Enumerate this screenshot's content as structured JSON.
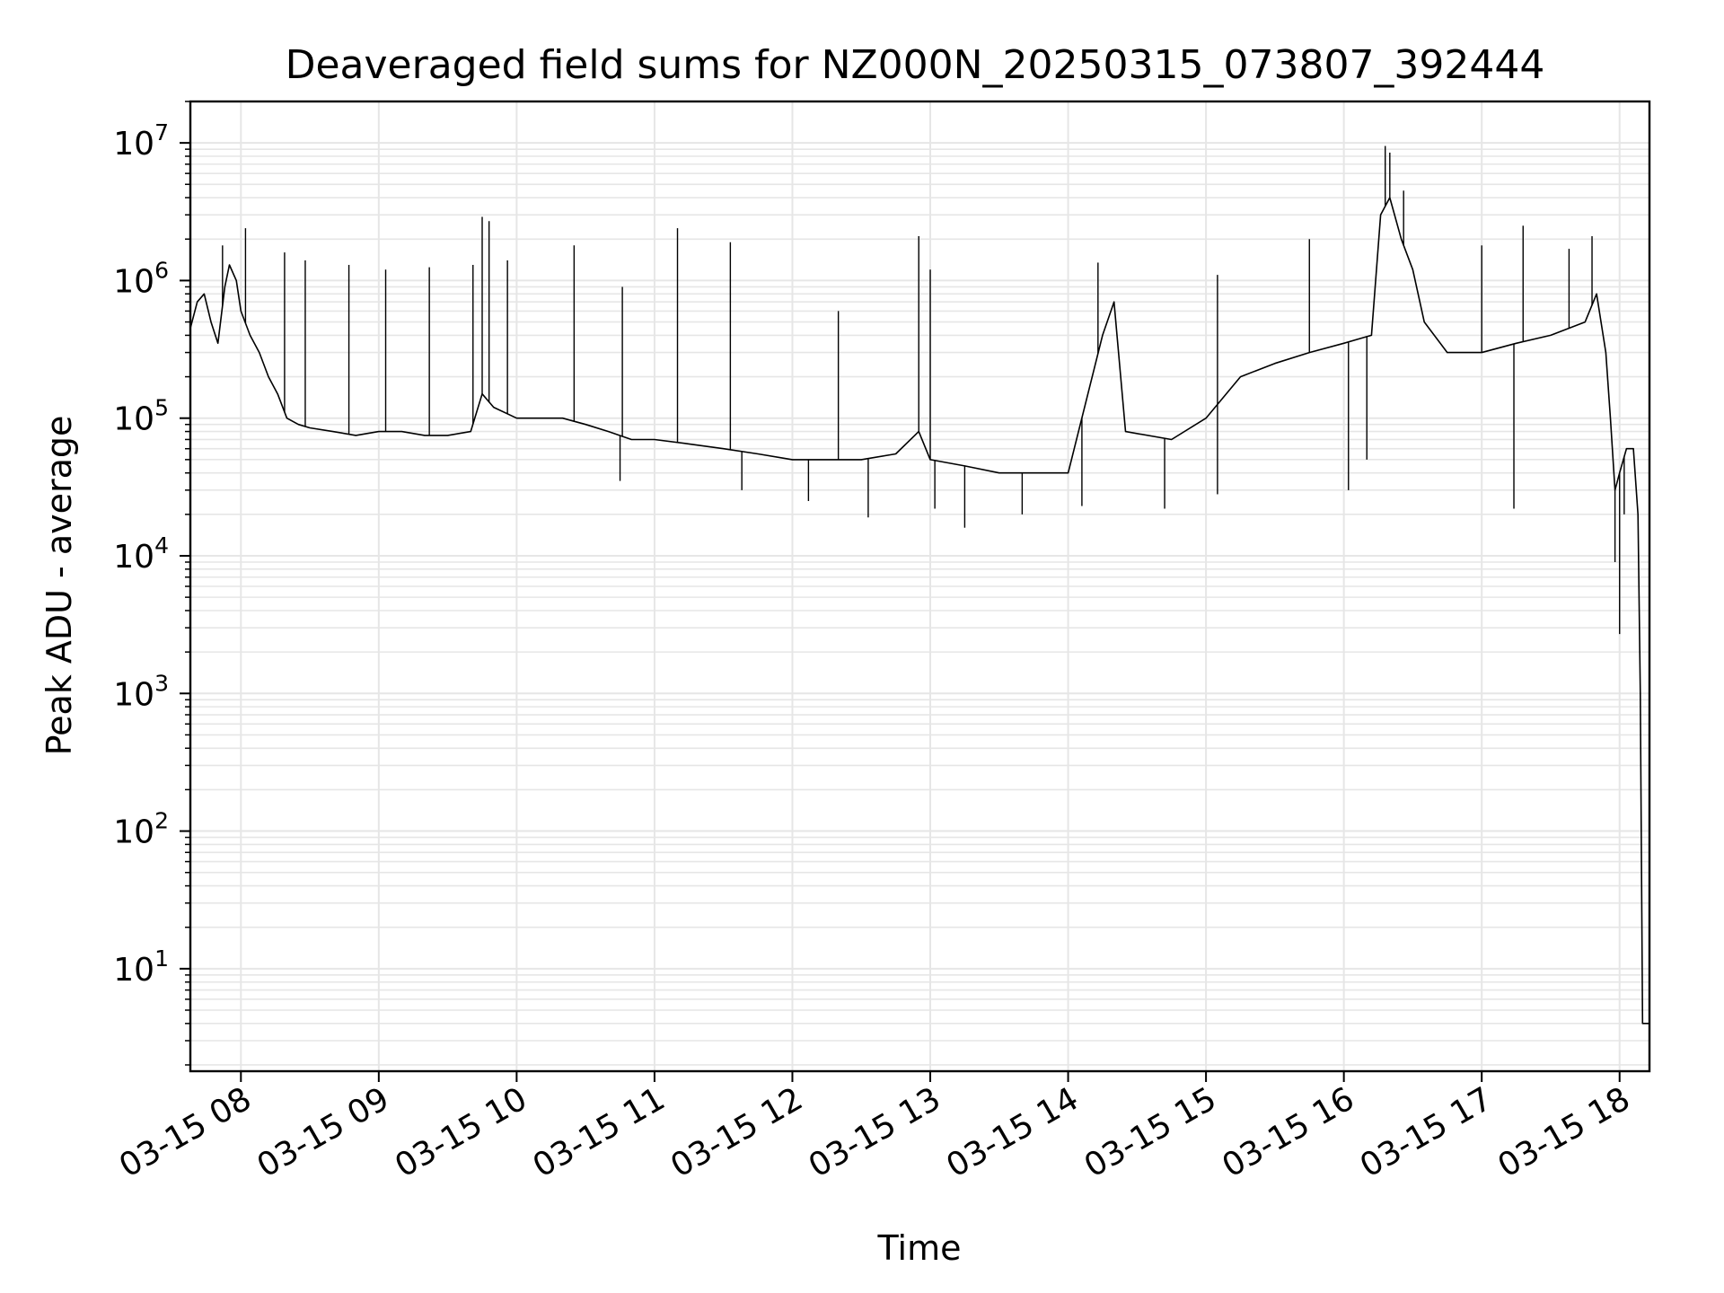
{
  "chart_data": {
    "type": "line",
    "title": "Deaveraged field sums for NZ000N_20250315_073807_392444",
    "xlabel": "Time",
    "ylabel": "Peak ADU - average",
    "yscale": "log",
    "ylim": [
      1.8,
      20000000
    ],
    "xlim": [
      "2025-03-15 07:38",
      "2025-03-15 18:13"
    ],
    "grid": true,
    "legend": "none",
    "line_color": "#000000",
    "grid_color": "#e6e6e6",
    "x_ticks": [
      {
        "t": "2025-03-15 08:00",
        "label": "03-15 08"
      },
      {
        "t": "2025-03-15 09:00",
        "label": "03-15 09"
      },
      {
        "t": "2025-03-15 10:00",
        "label": "03-15 10"
      },
      {
        "t": "2025-03-15 11:00",
        "label": "03-15 11"
      },
      {
        "t": "2025-03-15 12:00",
        "label": "03-15 12"
      },
      {
        "t": "2025-03-15 13:00",
        "label": "03-15 13"
      },
      {
        "t": "2025-03-15 14:00",
        "label": "03-15 14"
      },
      {
        "t": "2025-03-15 15:00",
        "label": "03-15 15"
      },
      {
        "t": "2025-03-15 16:00",
        "label": "03-15 16"
      },
      {
        "t": "2025-03-15 17:00",
        "label": "03-15 17"
      },
      {
        "t": "2025-03-15 18:00",
        "label": "03-15 18"
      }
    ],
    "y_ticks": [
      {
        "value": 10,
        "base": "10",
        "exp": "1"
      },
      {
        "value": 100,
        "base": "10",
        "exp": "2"
      },
      {
        "value": 1000,
        "base": "10",
        "exp": "3"
      },
      {
        "value": 10000,
        "base": "10",
        "exp": "4"
      },
      {
        "value": 100000,
        "base": "10",
        "exp": "5"
      },
      {
        "value": 1000000,
        "base": "10",
        "exp": "6"
      },
      {
        "value": 10000000,
        "base": "10",
        "exp": "7"
      }
    ],
    "series": [
      {
        "points": [
          [
            "2025-03-15 07:38",
            450000
          ],
          [
            "2025-03-15 07:41",
            700000
          ],
          [
            "2025-03-15 07:44",
            800000
          ],
          [
            "2025-03-15 07:47",
            500000
          ],
          [
            "2025-03-15 07:50",
            350000
          ],
          [
            "2025-03-15 07:53",
            900000
          ],
          [
            "2025-03-15 07:55",
            1300000
          ],
          [
            "2025-03-15 07:58",
            1000000
          ],
          [
            "2025-03-15 08:00",
            600000
          ],
          [
            "2025-03-15 08:04",
            400000
          ],
          [
            "2025-03-15 08:08",
            300000
          ],
          [
            "2025-03-15 08:12",
            200000
          ],
          [
            "2025-03-15 08:16",
            150000
          ],
          [
            "2025-03-15 08:20",
            100000
          ],
          [
            "2025-03-15 08:25",
            90000
          ],
          [
            "2025-03-15 08:30",
            85000
          ],
          [
            "2025-03-15 08:40",
            80000
          ],
          [
            "2025-03-15 08:50",
            75000
          ],
          [
            "2025-03-15 09:00",
            80000
          ],
          [
            "2025-03-15 09:10",
            80000
          ],
          [
            "2025-03-15 09:20",
            75000
          ],
          [
            "2025-03-15 09:30",
            75000
          ],
          [
            "2025-03-15 09:40",
            80000
          ],
          [
            "2025-03-15 09:45",
            150000
          ],
          [
            "2025-03-15 09:50",
            120000
          ],
          [
            "2025-03-15 10:00",
            100000
          ],
          [
            "2025-03-15 10:10",
            100000
          ],
          [
            "2025-03-15 10:20",
            100000
          ],
          [
            "2025-03-15 10:30",
            90000
          ],
          [
            "2025-03-15 10:40",
            80000
          ],
          [
            "2025-03-15 10:50",
            70000
          ],
          [
            "2025-03-15 11:00",
            70000
          ],
          [
            "2025-03-15 11:15",
            65000
          ],
          [
            "2025-03-15 11:30",
            60000
          ],
          [
            "2025-03-15 11:45",
            55000
          ],
          [
            "2025-03-15 12:00",
            50000
          ],
          [
            "2025-03-15 12:15",
            50000
          ],
          [
            "2025-03-15 12:30",
            50000
          ],
          [
            "2025-03-15 12:45",
            55000
          ],
          [
            "2025-03-15 12:55",
            80000
          ],
          [
            "2025-03-15 13:00",
            50000
          ],
          [
            "2025-03-15 13:15",
            45000
          ],
          [
            "2025-03-15 13:30",
            40000
          ],
          [
            "2025-03-15 13:45",
            40000
          ],
          [
            "2025-03-15 14:00",
            40000
          ],
          [
            "2025-03-15 14:15",
            400000
          ],
          [
            "2025-03-15 14:20",
            700000
          ],
          [
            "2025-03-15 14:25",
            80000
          ],
          [
            "2025-03-15 14:45",
            70000
          ],
          [
            "2025-03-15 15:00",
            100000
          ],
          [
            "2025-03-15 15:15",
            200000
          ],
          [
            "2025-03-15 15:30",
            250000
          ],
          [
            "2025-03-15 15:45",
            300000
          ],
          [
            "2025-03-15 16:00",
            350000
          ],
          [
            "2025-03-15 16:12",
            400000
          ],
          [
            "2025-03-15 16:16",
            3000000
          ],
          [
            "2025-03-15 16:20",
            4000000
          ],
          [
            "2025-03-15 16:25",
            2000000
          ],
          [
            "2025-03-15 16:30",
            1200000
          ],
          [
            "2025-03-15 16:35",
            500000
          ],
          [
            "2025-03-15 16:45",
            300000
          ],
          [
            "2025-03-15 17:00",
            300000
          ],
          [
            "2025-03-15 17:15",
            350000
          ],
          [
            "2025-03-15 17:30",
            400000
          ],
          [
            "2025-03-15 17:45",
            500000
          ],
          [
            "2025-03-15 17:50",
            800000
          ],
          [
            "2025-03-15 17:54",
            300000
          ],
          [
            "2025-03-15 17:56",
            100000
          ],
          [
            "2025-03-15 17:58",
            30000
          ],
          [
            "2025-03-15 18:00",
            40000
          ],
          [
            "2025-03-15 18:03",
            60000
          ],
          [
            "2025-03-15 18:06",
            60000
          ],
          [
            "2025-03-15 18:08",
            20000
          ],
          [
            "2025-03-15 18:09",
            1000
          ],
          [
            "2025-03-15 18:10",
            4
          ],
          [
            "2025-03-15 18:13",
            4
          ]
        ],
        "spikes": [
          [
            "2025-03-15 07:52",
            1800000
          ],
          [
            "2025-03-15 08:02",
            2400000
          ],
          [
            "2025-03-15 08:19",
            1600000
          ],
          [
            "2025-03-15 08:28",
            1400000
          ],
          [
            "2025-03-15 08:47",
            1300000
          ],
          [
            "2025-03-15 09:03",
            1200000
          ],
          [
            "2025-03-15 09:22",
            1250000
          ],
          [
            "2025-03-15 09:41",
            1300000
          ],
          [
            "2025-03-15 09:45",
            2900000
          ],
          [
            "2025-03-15 09:48",
            2700000
          ],
          [
            "2025-03-15 09:56",
            1400000
          ],
          [
            "2025-03-15 10:25",
            1800000
          ],
          [
            "2025-03-15 10:46",
            900000
          ],
          [
            "2025-03-15 11:10",
            2400000
          ],
          [
            "2025-03-15 11:33",
            1900000
          ],
          [
            "2025-03-15 12:20",
            600000
          ],
          [
            "2025-03-15 12:55",
            2100000
          ],
          [
            "2025-03-15 13:00",
            1200000
          ],
          [
            "2025-03-15 14:13",
            1350000
          ],
          [
            "2025-03-15 15:05",
            1100000
          ],
          [
            "2025-03-15 15:45",
            2000000
          ],
          [
            "2025-03-15 16:18",
            9500000
          ],
          [
            "2025-03-15 16:20",
            8500000
          ],
          [
            "2025-03-15 16:26",
            4500000
          ],
          [
            "2025-03-15 17:00",
            1800000
          ],
          [
            "2025-03-15 17:18",
            2500000
          ],
          [
            "2025-03-15 17:38",
            1700000
          ],
          [
            "2025-03-15 17:48",
            2100000
          ]
        ],
        "dips": [
          [
            "2025-03-15 10:45",
            35000
          ],
          [
            "2025-03-15 11:38",
            30000
          ],
          [
            "2025-03-15 12:07",
            25000
          ],
          [
            "2025-03-15 12:33",
            19000
          ],
          [
            "2025-03-15 13:02",
            22000
          ],
          [
            "2025-03-15 13:15",
            16000
          ],
          [
            "2025-03-15 13:40",
            20000
          ],
          [
            "2025-03-15 14:06",
            23000
          ],
          [
            "2025-03-15 14:42",
            22000
          ],
          [
            "2025-03-15 15:05",
            28000
          ],
          [
            "2025-03-15 16:02",
            30000
          ],
          [
            "2025-03-15 16:10",
            50000
          ],
          [
            "2025-03-15 17:14",
            22000
          ],
          [
            "2025-03-15 17:58",
            9000
          ],
          [
            "2025-03-15 18:00",
            2700
          ],
          [
            "2025-03-15 18:02",
            20000
          ]
        ]
      }
    ]
  }
}
